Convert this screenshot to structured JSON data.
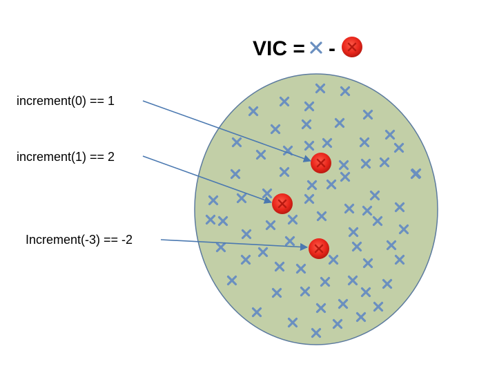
{
  "title": {
    "prefix": "VIC = ",
    "minus": "-",
    "x_icon": "blue-x-icon",
    "dot_icon": "red-dot-icon"
  },
  "colors": {
    "region_fill": "#c2cfa7",
    "region_stroke": "#5b7a9e",
    "x_marker": "#6a8fc0",
    "dot_fill": "#e8261b",
    "dot_dark": "#b81910",
    "arrow": "#4a78b0"
  },
  "annotations": [
    {
      "label": "increment(0) == 1"
    },
    {
      "label": "increment(1) == 2"
    },
    {
      "label": "Increment(-3) == -2"
    }
  ],
  "counts": {
    "x_markers": 84,
    "red_dots": 3
  }
}
